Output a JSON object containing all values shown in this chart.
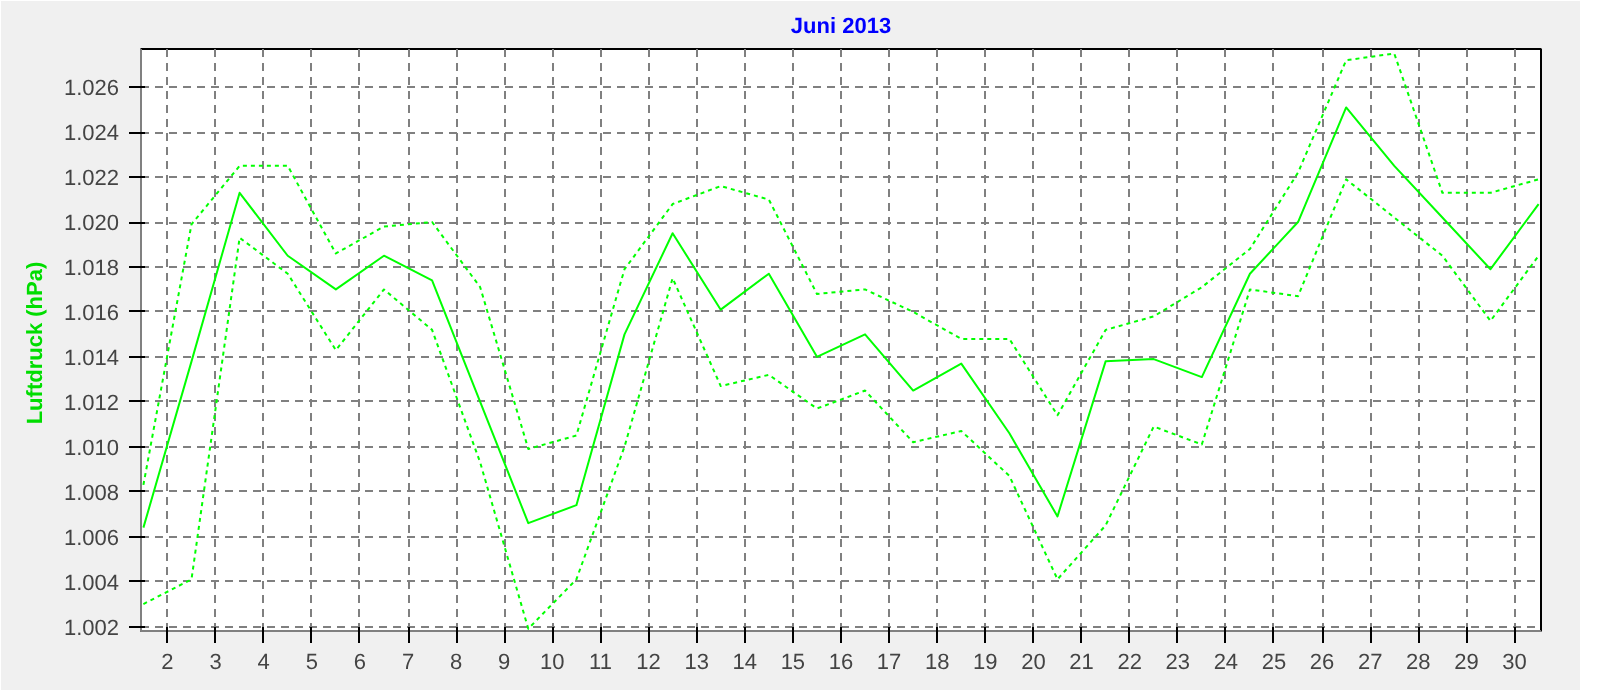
{
  "chart_data": {
    "type": "line",
    "title": "Juni 2013",
    "ylabel": "Luftdruck  (hPa)",
    "x": [
      1.5,
      2.5,
      3.5,
      4.5,
      5.5,
      6.5,
      7.5,
      8.5,
      9.5,
      10.5,
      11.5,
      12.5,
      13.5,
      14.5,
      15.5,
      16.5,
      17.5,
      18.5,
      19.5,
      20.5,
      21.5,
      22.5,
      23.5,
      24.5,
      25.5,
      26.5,
      27.5,
      28.5,
      29.5,
      30.5
    ],
    "xlim": [
      1.45,
      30.55
    ],
    "xticks": [
      2,
      3,
      4,
      5,
      6,
      7,
      8,
      9,
      10,
      11,
      12,
      13,
      14,
      15,
      16,
      17,
      18,
      19,
      20,
      21,
      22,
      23,
      24,
      25,
      26,
      27,
      28,
      29,
      30
    ],
    "ylim": [
      1.0018,
      1.0277
    ],
    "yticks": [
      1.002,
      1.004,
      1.006,
      1.008,
      {
        "value": 1.01,
        "label": "1.010"
      },
      1.012,
      1.014,
      1.016,
      1.018,
      {
        "value": 1.02,
        "label": "1.020"
      },
      1.022,
      1.024,
      1.026
    ],
    "grid": true,
    "series": [
      {
        "color": "#00ff00",
        "line_style": "dotted",
        "values": [
          1.0083,
          1.0199,
          1.0225,
          1.0225,
          1.0186,
          1.0198,
          1.02,
          1.0171,
          1.0099,
          1.0105,
          1.0179,
          1.0208,
          1.0216,
          1.021,
          1.0168,
          1.017,
          1.016,
          1.0148,
          1.0148,
          1.0114,
          1.0152,
          1.0158,
          1.0171,
          1.0188,
          1.0222,
          1.0272,
          1.0275,
          1.0213,
          1.0213,
          1.0219
        ]
      },
      {
        "color": "#00ff00",
        "line_style": "solid",
        "values": [
          1.0064,
          1.0138,
          1.0213,
          1.0185,
          1.017,
          1.0185,
          1.0174,
          1.012,
          1.0066,
          1.0074,
          1.015,
          1.0195,
          1.0161,
          1.0177,
          1.014,
          1.015,
          1.0125,
          1.0137,
          1.0106,
          1.0069,
          1.0138,
          1.0139,
          1.0131,
          1.0177,
          1.02,
          1.0251,
          1.0225,
          1.0202,
          1.0179,
          1.0208
        ]
      },
      {
        "color": "#00ff00",
        "line_style": "dotted",
        "values": [
          1.003,
          1.0041,
          1.0193,
          1.0177,
          1.0143,
          1.017,
          1.0152,
          1.0093,
          1.0019,
          1.0041,
          1.01,
          1.0175,
          1.0127,
          1.0132,
          1.0117,
          1.0125,
          1.0102,
          1.0107,
          1.0087,
          1.0041,
          1.0065,
          1.0109,
          1.0101,
          1.017,
          1.0167,
          1.0219,
          1.0202,
          1.0185,
          1.0156,
          1.0185
        ]
      }
    ]
  }
}
